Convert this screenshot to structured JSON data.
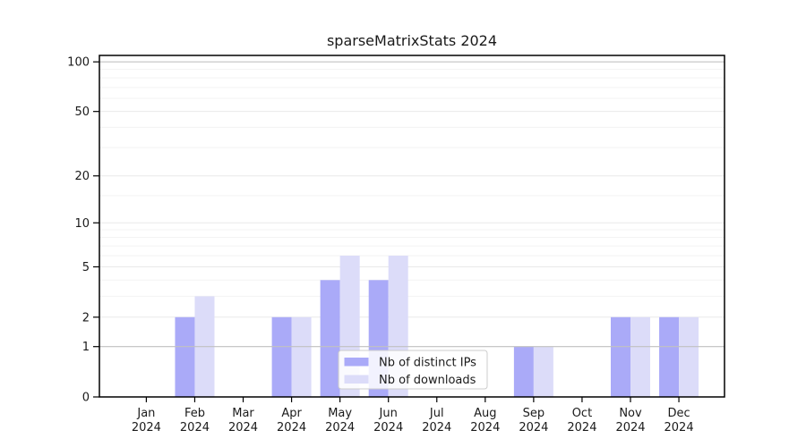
{
  "chart_data": {
    "type": "bar",
    "title": "sparseMatrixStats 2024",
    "categories": [
      "Jan",
      "Feb",
      "Mar",
      "Apr",
      "May",
      "Jun",
      "Jul",
      "Aug",
      "Sep",
      "Oct",
      "Nov",
      "Dec"
    ],
    "category_year": "2024",
    "series": [
      {
        "name": "Nb of distinct IPs",
        "color": "#aaaaf8",
        "values": [
          0,
          2,
          0,
          2,
          4,
          4,
          0,
          0,
          1,
          0,
          2,
          2
        ]
      },
      {
        "name": "Nb of downloads",
        "color": "#dcdcf9",
        "values": [
          0,
          3,
          0,
          2,
          6,
          6,
          0,
          0,
          1,
          0,
          2,
          2
        ]
      }
    ],
    "xlabel": "",
    "ylabel": "",
    "y_scale": "log10(1+x)",
    "ylim": [
      0,
      100
    ],
    "y_ticks": [
      0,
      1,
      2,
      5,
      10,
      20,
      50,
      100
    ],
    "y_tick_labels": [
      "0",
      "1",
      "2",
      "5",
      "10",
      "20",
      "50",
      "100"
    ],
    "y_minor_gridlines": [
      3,
      4,
      6,
      7,
      8,
      9,
      15,
      30,
      40,
      60,
      70,
      80,
      90
    ],
    "y_emphasized_gridlines": [
      1,
      100
    ],
    "grid": true,
    "legend_position": "lower center",
    "colors": {
      "axis": "#000000",
      "tick_text": "#1a1a1a",
      "grid_major": "#e9e9e9",
      "grid_minor": "#f3f3f3",
      "grid_emphasized": "#c0c0c0",
      "legend_border": "#cccccc",
      "legend_background": "rgba(255,255,255,0.85)",
      "plot_background": "#ffffff"
    }
  }
}
